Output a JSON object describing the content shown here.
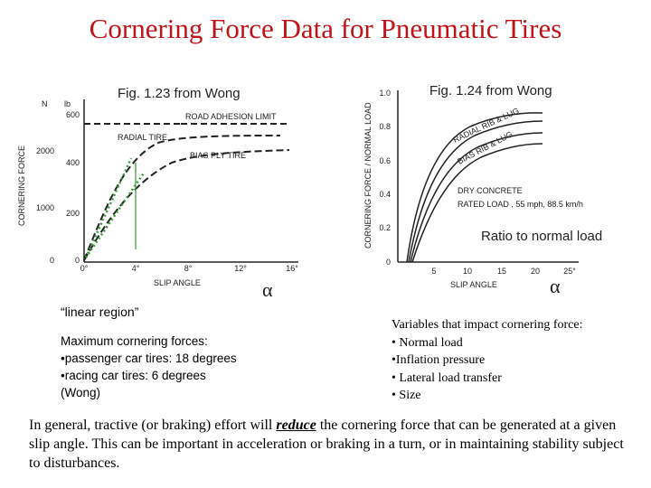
{
  "title": "Cornering Force Data for Pneumatic Tires",
  "figure_left": {
    "caption": "Fig. 1.23 from Wong",
    "y_unit_left": "N",
    "y_unit_right": "lb",
    "y_label": "CORNERING FORCE",
    "x_label": "SLIP ANGLE",
    "symbol": "α",
    "lb_ticks": [
      "600",
      "400",
      "200",
      "0"
    ],
    "n_ticks": [
      "2000",
      "1000",
      "0"
    ],
    "x_ticks": [
      "0°",
      "4°",
      "8°",
      "12°",
      "16°"
    ],
    "curves": [
      "ROAD ADHESION LIMIT",
      "RADIAL TIRE",
      "BIAS PLY TIRE"
    ]
  },
  "figure_right": {
    "caption": "Fig. 1.24 from Wong",
    "y_label": "CORNERING FORCE / NORMAL LOAD",
    "y_ticks": [
      "1.0",
      "0.8",
      "0.6",
      "0.4",
      "0.2",
      "0"
    ],
    "x_ticks": [
      "5",
      "10",
      "15",
      "20",
      "25°"
    ],
    "x_label": "SLIP ANGLE",
    "symbol": "α",
    "curves": [
      "RADIAL RIB & LUG",
      "BIAS RIB & LUG"
    ],
    "conditions": [
      "DRY CONCRETE",
      "RATED LOAD , 55 mph, 88.5 km/h"
    ],
    "note": "Ratio to normal load"
  },
  "linear_note": "“linear region”",
  "max_forces": [
    "Maximum cornering forces:",
    "•passenger car tires: 18 degrees",
    "•racing car tires: 6 degrees",
    "(Wong)"
  ],
  "variables": [
    "Variables that impact cornering force:",
    "• Normal load",
    "•Inflation pressure",
    "• Lateral load transfer",
    "• Size"
  ],
  "paragraph": {
    "before": "In general, tractive (or braking) effort will ",
    "emphasis": "reduce",
    "after": " the cornering force that can be generated at a given slip angle. This can be important in acceleration or braking in a turn, or in maintaining stability subject to disturbances."
  }
}
